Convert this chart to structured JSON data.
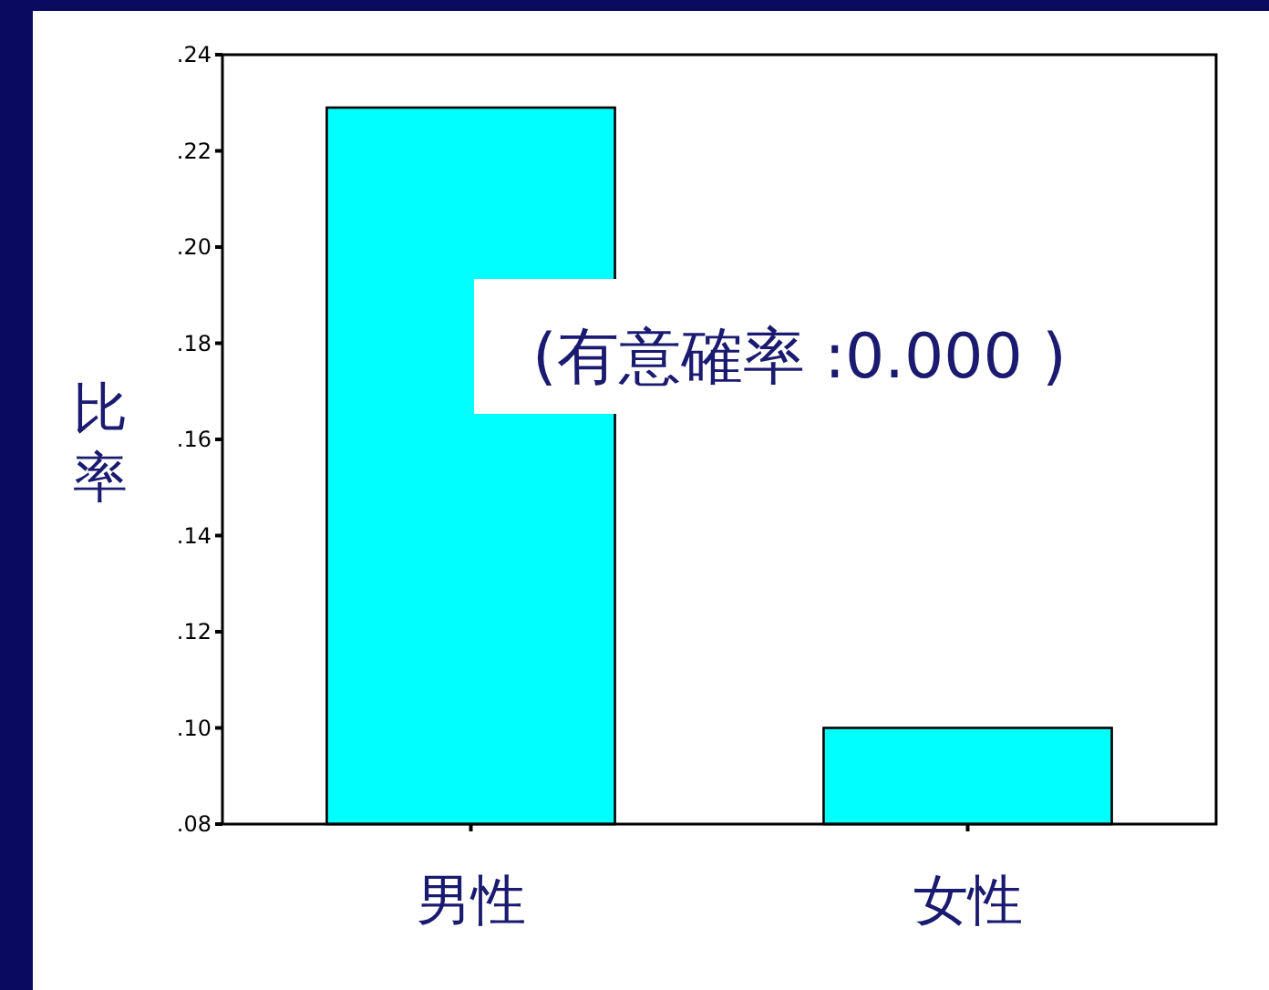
{
  "chart_data": {
    "type": "bar",
    "ylabel": "比率",
    "categories": [
      "男性",
      "女性"
    ],
    "values": [
      0.229,
      0.1
    ],
    "color": "#00ffff",
    "ylim": [
      0.08,
      0.24
    ],
    "yticks": [
      {
        "value": 0.08,
        "label": ".08"
      },
      {
        "value": 0.1,
        "label": ".10"
      },
      {
        "value": 0.12,
        "label": ".12"
      },
      {
        "value": 0.14,
        "label": ".14"
      },
      {
        "value": 0.16,
        "label": ".16"
      },
      {
        "value": 0.18,
        "label": ".18"
      },
      {
        "value": 0.2,
        "label": ".20"
      },
      {
        "value": 0.22,
        "label": ".22"
      },
      {
        "value": 0.24,
        "label": ".24"
      }
    ],
    "annotations": [
      "(有意確率 :0.000 )"
    ]
  }
}
